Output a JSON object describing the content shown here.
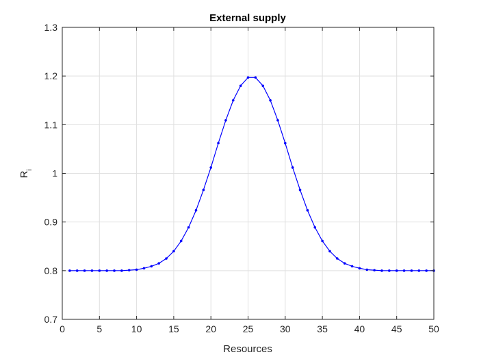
{
  "chart_data": {
    "type": "line",
    "title": "External supply",
    "xlabel": "Resources",
    "ylabel_main": "R",
    "ylabel_sub": "i",
    "xlim": [
      0,
      50
    ],
    "ylim": [
      0.7,
      1.3
    ],
    "xticks": [
      0,
      5,
      10,
      15,
      20,
      25,
      30,
      35,
      40,
      45,
      50
    ],
    "yticks": [
      0.7,
      0.8,
      0.9,
      1,
      1.1,
      1.2,
      1.3
    ],
    "grid": true,
    "line_color": "#0000ff",
    "x": [
      1,
      2,
      3,
      4,
      5,
      6,
      7,
      8,
      9,
      10,
      11,
      12,
      13,
      14,
      15,
      16,
      17,
      18,
      19,
      20,
      21,
      22,
      23,
      24,
      25,
      26,
      27,
      28,
      29,
      30,
      31,
      32,
      33,
      34,
      35,
      36,
      37,
      38,
      39,
      40,
      41,
      42,
      43,
      44,
      45,
      46,
      47,
      48,
      49,
      50
    ],
    "y": [
      0.8,
      0.8,
      0.8,
      0.8,
      0.8,
      0.8,
      0.8,
      0.8,
      0.801,
      0.802,
      0.805,
      0.809,
      0.815,
      0.825,
      0.84,
      0.861,
      0.889,
      0.924,
      0.966,
      1.012,
      1.062,
      1.109,
      1.15,
      1.18,
      1.197,
      1.197,
      1.18,
      1.15,
      1.109,
      1.062,
      1.012,
      0.966,
      0.924,
      0.889,
      0.861,
      0.84,
      0.825,
      0.815,
      0.809,
      0.805,
      0.802,
      0.801,
      0.8,
      0.8,
      0.8,
      0.8,
      0.8,
      0.8,
      0.8,
      0.8
    ]
  }
}
